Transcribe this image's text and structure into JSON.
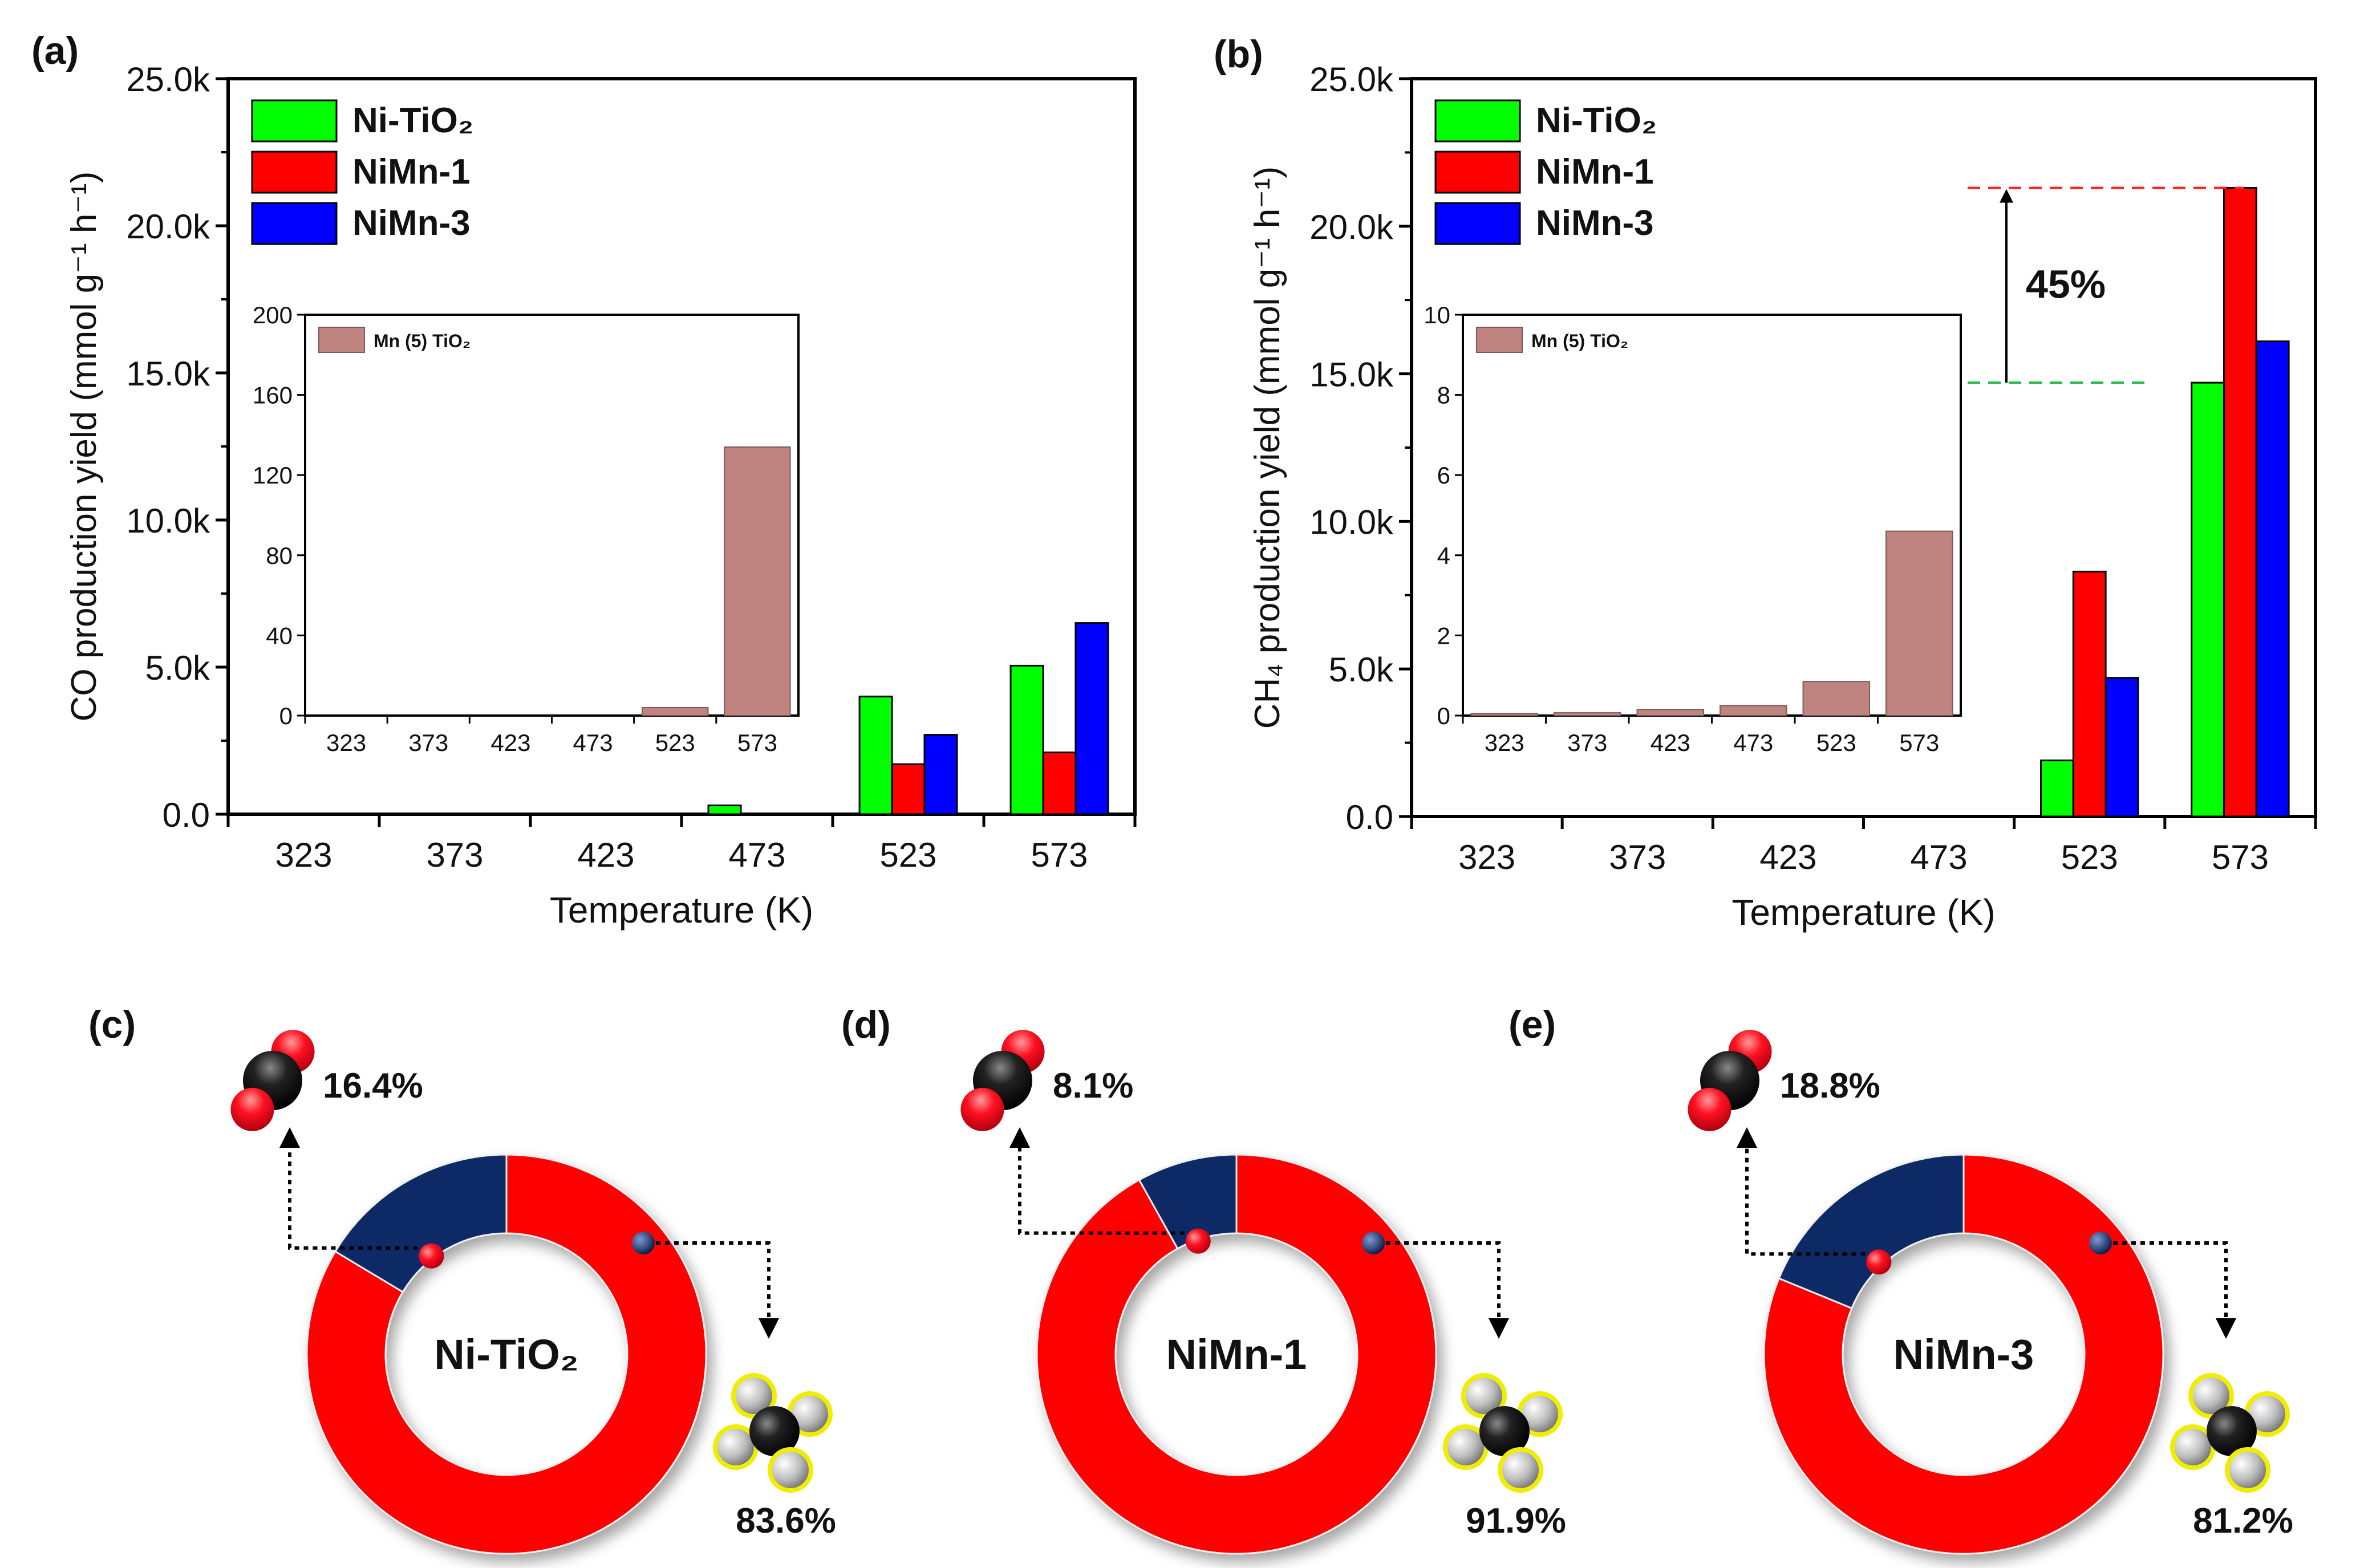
{
  "panel_labels": {
    "a": "(a)",
    "b": "(b)",
    "c": "(c)",
    "d": "(d)",
    "e": "(e)"
  },
  "chart_data": [
    {
      "id": "a",
      "type": "bar",
      "xlabel": "Temperature (K)",
      "ylabel": "CO production yield (mmol g⁻¹ h⁻¹)",
      "ylim": [
        0,
        25000
      ],
      "yticks": [
        "0.0",
        "5.0k",
        "10.0k",
        "15.0k",
        "20.0k",
        "25.0k"
      ],
      "categories": [
        "323",
        "373",
        "423",
        "473",
        "523",
        "573"
      ],
      "series": [
        {
          "name": "Ni-TiO₂",
          "color": "#00ff00",
          "values": [
            0,
            0,
            0,
            300,
            4000,
            5050
          ]
        },
        {
          "name": "NiMn-1",
          "color": "#ff0000",
          "values": [
            0,
            0,
            0,
            0,
            1700,
            2100
          ]
        },
        {
          "name": "NiMn-3",
          "color": "#0000ff",
          "values": [
            0,
            0,
            0,
            0,
            2700,
            6500
          ]
        }
      ],
      "legend": "top-left",
      "inset": {
        "type": "bar",
        "ylim": [
          0,
          200
        ],
        "yticks": [
          "0",
          "40",
          "80",
          "120",
          "160",
          "200"
        ],
        "categories": [
          "323",
          "373",
          "423",
          "473",
          "523",
          "573"
        ],
        "series": [
          {
            "name": "Mn (5) TiO₂",
            "color": "#c08480",
            "values": [
              0,
              0,
              0,
              0,
              4,
              134
            ]
          }
        ],
        "legend": "top-left"
      }
    },
    {
      "id": "b",
      "type": "bar",
      "xlabel": "Temperature (K)",
      "ylabel": "CH₄ production yield (mmol g⁻¹ h⁻¹)",
      "ylim": [
        0,
        25000
      ],
      "yticks": [
        "0.0",
        "5.0k",
        "10.0k",
        "15.0k",
        "20.0k",
        "25.0k"
      ],
      "categories": [
        "323",
        "373",
        "423",
        "473",
        "523",
        "573"
      ],
      "series": [
        {
          "name": "Ni-TiO₂",
          "color": "#00ff00",
          "values": [
            0,
            0,
            0,
            0,
            1900,
            14700
          ]
        },
        {
          "name": "NiMn-1",
          "color": "#ff0000",
          "values": [
            0,
            0,
            0,
            0,
            8300,
            21300
          ]
        },
        {
          "name": "NiMn-3",
          "color": "#0000ff",
          "values": [
            0,
            0,
            0,
            0,
            4700,
            16100
          ]
        }
      ],
      "legend": "top-left",
      "annotation": {
        "text": "45%",
        "from_value": 14700,
        "to_value": 21300
      },
      "inset": {
        "type": "bar",
        "ylim": [
          0,
          10
        ],
        "yticks": [
          "0",
          "2",
          "4",
          "6",
          "8",
          "10"
        ],
        "categories": [
          "323",
          "373",
          "423",
          "473",
          "523",
          "573"
        ],
        "series": [
          {
            "name": "Mn (5) TiO₂",
            "color": "#c08480",
            "values": [
              0.05,
              0.07,
              0.15,
              0.25,
              0.85,
              4.6
            ]
          }
        ],
        "legend": "top-left"
      }
    },
    {
      "id": "c",
      "type": "pie",
      "center_label": "Ni-TiO₂",
      "slices": [
        {
          "name": "CO",
          "value": 16.4,
          "label": "16.4%",
          "color": "#0c2a66"
        },
        {
          "name": "CH₄",
          "value": 83.6,
          "label": "83.6%",
          "color": "#ff0000"
        }
      ]
    },
    {
      "id": "d",
      "type": "pie",
      "center_label": "NiMn-1",
      "slices": [
        {
          "name": "CO",
          "value": 8.1,
          "label": "8.1%",
          "color": "#0c2a66"
        },
        {
          "name": "CH₄",
          "value": 91.9,
          "label": "91.9%",
          "color": "#ff0000"
        }
      ]
    },
    {
      "id": "e",
      "type": "pie",
      "center_label": "NiMn-3",
      "slices": [
        {
          "name": "CO",
          "value": 18.8,
          "label": "18.8%",
          "color": "#0c2a66"
        },
        {
          "name": "CH₄",
          "value": 81.2,
          "label": "81.2%",
          "color": "#ff0000"
        }
      ]
    }
  ],
  "colors": {
    "co_label": "#1a3a78",
    "ch4_label": "#ff1a1a",
    "ref_red": "#ff2020",
    "ref_green": "#22bb44"
  },
  "icons": {
    "co_molecule": "co-molecule-icon",
    "ch4_molecule": "ch4-molecule-icon"
  }
}
